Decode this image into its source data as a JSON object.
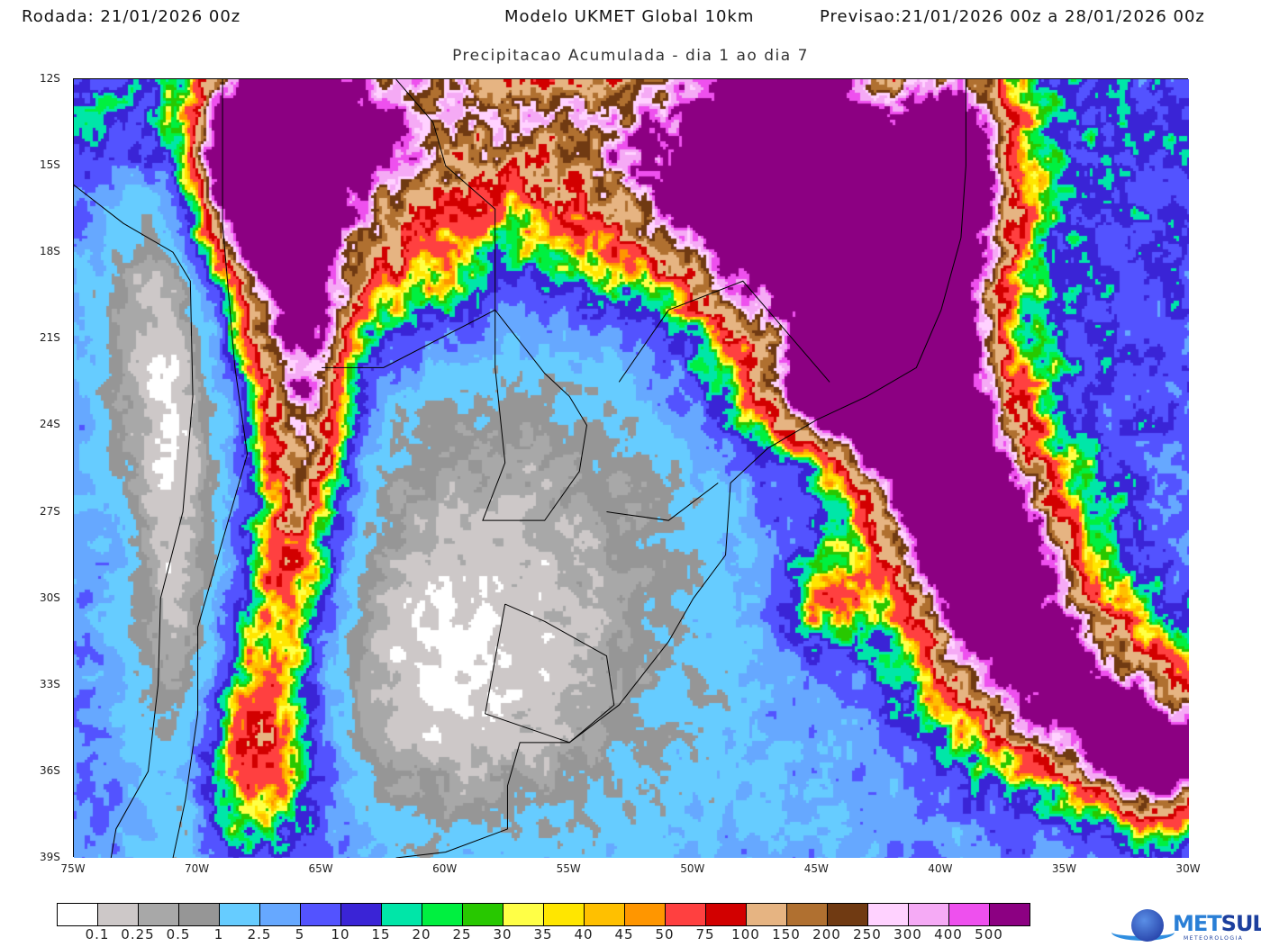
{
  "header": {
    "run": "Rodada: 21/01/2026 00z",
    "model": "Modelo UKMET Global 10km",
    "forecast": "Previsao:21/01/2026 00z a 28/01/2026 00z",
    "subtitle": "Precipitacao Acumulada - dia 1 ao dia 7"
  },
  "map": {
    "lon_range": [
      -75,
      -30
    ],
    "lat_range": [
      -12,
      -39
    ],
    "lat_labels": [
      "12S",
      "15S",
      "18S",
      "21S",
      "24S",
      "27S",
      "30S",
      "33S",
      "36S",
      "39S"
    ],
    "lon_labels": [
      "75W",
      "70W",
      "65W",
      "60W",
      "55W",
      "50W",
      "45W",
      "40W",
      "35W",
      "30W"
    ]
  },
  "colorbar": {
    "labels": [
      "0.1",
      "0.25",
      "0.5",
      "1",
      "2.5",
      "5",
      "10",
      "15",
      "20",
      "25",
      "30",
      "35",
      "40",
      "45",
      "50",
      "75",
      "100",
      "150",
      "200",
      "250",
      "300",
      "400",
      "500"
    ],
    "colors": [
      "#ffffff",
      "#cdc8c8",
      "#a8a8a8",
      "#969696",
      "#66ccff",
      "#66a8ff",
      "#5353ff",
      "#3a24d6",
      "#00e6a8",
      "#00f040",
      "#28c800",
      "#ffff46",
      "#ffe600",
      "#ffc000",
      "#ff9600",
      "#ff4040",
      "#d20000",
      "#e6b482",
      "#b07030",
      "#703a12",
      "#ffd2ff",
      "#f5aaf5",
      "#ee50ee",
      "#8c0082"
    ]
  },
  "logo": {
    "name": "METSUL",
    "tagline": "METEOROLOGIA"
  }
}
